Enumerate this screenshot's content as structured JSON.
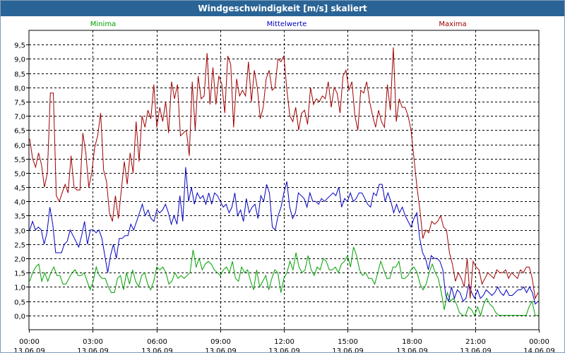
{
  "window": {
    "title": "Windgeschwindigkeit [m/s] skaliert"
  },
  "chart_data": {
    "type": "line",
    "title": "Windgeschwindigkeit [m/s] skaliert",
    "xlabel": "",
    "ylabel": "",
    "ylim": [
      -0.5,
      10
    ],
    "yticks": [
      "0,0",
      "0,5",
      "1,0",
      "1,5",
      "2,0",
      "2,5",
      "3,0",
      "3,5",
      "4,0",
      "4,5",
      "5,0",
      "5,5",
      "6,0",
      "6,5",
      "7,0",
      "7,5",
      "8,0",
      "8,5",
      "9,0",
      "9,5"
    ],
    "xticks": [
      {
        "time": "00:00",
        "date": "13.06.09"
      },
      {
        "time": "03:00",
        "date": "13.06.09"
      },
      {
        "time": "06:00",
        "date": "13.06.09"
      },
      {
        "time": "09:00",
        "date": "13.06.09"
      },
      {
        "time": "12:00",
        "date": "13.06.09"
      },
      {
        "time": "15:00",
        "date": "13.06.09"
      },
      {
        "time": "18:00",
        "date": "13.06.09"
      },
      {
        "time": "21:00",
        "date": "13.06.09"
      },
      {
        "time": "00:00",
        "date": "14.06.09"
      }
    ],
    "xlim_hours": [
      0,
      24
    ],
    "grid": true,
    "legend_placement": "top",
    "series": [
      {
        "name": "Minima",
        "color": "#00a000",
        "values": [
          1.2,
          1.5,
          1.7,
          1.8,
          1.2,
          1.5,
          1.2,
          1.5,
          1.7,
          1.4,
          1.4,
          1.1,
          1.1,
          1.3,
          1.5,
          1.6,
          1.4,
          1.4,
          1.5,
          1.2,
          0.9,
          1.2,
          1.7,
          1.4,
          1.3,
          1.3,
          1.0,
          0.8,
          0.8,
          1.3,
          1.4,
          0.9,
          1.5,
          1.1,
          1.6,
          1.2,
          1.0,
          1.4,
          1.5,
          1.1,
          0.9,
          1.2,
          1.7,
          1.6,
          1.7,
          1.5,
          1.1,
          1.2,
          1.5,
          1.3,
          1.4,
          1.3,
          1.4,
          1.5,
          2.3,
          1.7,
          2.0,
          1.6,
          1.8,
          1.9,
          1.8,
          1.6,
          1.5,
          1.4,
          1.6,
          1.7,
          1.5,
          1.9,
          1.3,
          1.2,
          1.7,
          1.5,
          1.6,
          1.2,
          0.9,
          1.6,
          1.0,
          1.2,
          1.4,
          0.9,
          1.3,
          1.6,
          1.5,
          0.8,
          1.3,
          1.5,
          1.9,
          1.6,
          2.2,
          1.7,
          1.5,
          1.6,
          2.1,
          1.6,
          1.4,
          1.7,
          1.6,
          2.0,
          1.9,
          1.6,
          1.6,
          1.7,
          1.5,
          1.8,
          1.9,
          2.1,
          1.7,
          2.4,
          2.1,
          1.6,
          1.4,
          1.5,
          1.3,
          1.3,
          1.1,
          1.5,
          1.9,
          1.6,
          1.3,
          1.3,
          1.7,
          1.7,
          1.9,
          1.3,
          1.3,
          1.4,
          1.6,
          1.7,
          1.5,
          1.1,
          0.9,
          1.1,
          1.5,
          1.8,
          1.5,
          1.3,
          0.8,
          0.2,
          0.8,
          0.5,
          0.6,
          0.4,
          0.1,
          0.0,
          0.0,
          0.3,
          0.2,
          0.0,
          0.3,
          0.0,
          0.4,
          0.6,
          0.4,
          0.3,
          0.1,
          0.0,
          0.0,
          0.0,
          0.0,
          0.0,
          0.0,
          0.0,
          0.0,
          0.0,
          0.0,
          0.3,
          0.5,
          0.0,
          0.0
        ]
      },
      {
        "name": "Mittelwerte",
        "color": "#0000c0",
        "values": [
          3.0,
          3.3,
          3.0,
          3.1,
          3.0,
          2.5,
          2.9,
          3.8,
          3.2,
          2.2,
          2.2,
          2.2,
          2.5,
          2.6,
          3.0,
          2.8,
          2.6,
          2.4,
          2.8,
          3.3,
          2.5,
          3.0,
          3.0,
          2.9,
          3.0,
          2.7,
          2.1,
          1.5,
          2.1,
          2.5,
          2.0,
          2.7,
          2.7,
          2.8,
          2.8,
          3.2,
          3.0,
          3.3,
          3.6,
          3.9,
          3.5,
          3.7,
          3.4,
          3.3,
          3.7,
          3.6,
          3.7,
          3.9,
          3.6,
          3.2,
          3.5,
          3.2,
          4.2,
          3.3,
          5.2,
          4.0,
          4.5,
          3.9,
          4.3,
          4.1,
          4.2,
          3.9,
          4.3,
          3.9,
          4.3,
          4.2,
          4.0,
          3.8,
          3.9,
          3.6,
          3.8,
          4.3,
          3.5,
          3.7,
          3.3,
          4.1,
          3.6,
          3.8,
          3.9,
          3.4,
          4.2,
          4.0,
          4.6,
          4.3,
          3.1,
          3.0,
          3.5,
          3.8,
          4.3,
          4.7,
          3.8,
          3.4,
          3.6,
          4.3,
          4.2,
          4.1,
          3.8,
          4.3,
          4.0,
          4.0,
          3.9,
          4.1,
          4.0,
          4.1,
          4.2,
          4.3,
          4.2,
          4.5,
          3.8,
          4.1,
          4.0,
          4.3,
          4.0,
          4.1,
          4.3,
          4.3,
          4.1,
          3.9,
          3.8,
          4.3,
          4.2,
          4.6,
          4.6,
          4.0,
          4.3,
          4.0,
          3.6,
          3.9,
          3.6,
          3.8,
          3.5,
          3.3,
          3.1,
          3.4,
          3.6,
          2.7,
          2.2,
          2.0,
          1.6,
          2.1,
          2.0,
          2.0,
          1.9,
          1.6,
          0.7,
          0.5,
          1.0,
          0.6,
          0.9,
          0.8,
          0.5,
          0.6,
          1.1,
          0.8,
          0.6,
          0.9,
          0.6,
          0.7,
          0.9,
          0.8,
          0.7,
          0.8,
          1.0,
          0.8,
          0.7,
          0.9,
          0.7,
          0.7,
          0.8,
          0.9,
          0.9,
          1.0,
          0.8,
          1.0,
          0.8,
          0.4,
          0.5
        ]
      },
      {
        "name": "Maxima",
        "color": "#a00000",
        "values": [
          6.2,
          5.5,
          5.2,
          5.7,
          5.3,
          4.5,
          5.0,
          7.8,
          7.8,
          4.2,
          4.0,
          4.3,
          4.6,
          4.3,
          5.6,
          4.5,
          4.4,
          4.4,
          6.4,
          5.7,
          4.5,
          5.0,
          5.9,
          6.3,
          7.1,
          5.1,
          4.7,
          3.6,
          3.3,
          4.2,
          3.4,
          4.4,
          5.4,
          4.6,
          5.7,
          5.0,
          6.8,
          5.4,
          7.0,
          6.6,
          7.2,
          6.9,
          8.1,
          6.6,
          7.3,
          6.8,
          7.5,
          6.4,
          8.2,
          7.6,
          8.1,
          6.3,
          6.4,
          6.5,
          5.6,
          8.2,
          6.5,
          8.4,
          7.6,
          7.7,
          9.2,
          7.4,
          8.7,
          7.4,
          8.4,
          8.1,
          7.1,
          9.1,
          8.8,
          6.6,
          8.3,
          7.7,
          7.9,
          7.7,
          8.9,
          7.5,
          8.6,
          8.0,
          6.9,
          7.3,
          8.3,
          8.6,
          7.9,
          8.0,
          9.0,
          8.9,
          9.1,
          7.9,
          7.0,
          6.8,
          7.3,
          6.5,
          7.1,
          7.2,
          6.7,
          8.0,
          7.4,
          7.6,
          7.5,
          7.7,
          7.6,
          8.2,
          7.3,
          8.0,
          7.8,
          7.1,
          8.4,
          8.6,
          7.9,
          8.2,
          7.0,
          6.5,
          7.9,
          7.8,
          8.2,
          7.5,
          7.0,
          6.6,
          7.2,
          6.8,
          6.6,
          8.1,
          7.2,
          9.4,
          6.8,
          7.6,
          7.3,
          7.3,
          7.0,
          6.5,
          5.5,
          4.5,
          3.7,
          2.7,
          3.0,
          2.9,
          3.3,
          3.2,
          3.3,
          3.5,
          3.1,
          3.0,
          2.2,
          1.8,
          1.2,
          1.5,
          1.3,
          1.0,
          2.0,
          0.6,
          1.9,
          1.7,
          1.6,
          1.1,
          1.3,
          1.5,
          1.4,
          1.3,
          1.6,
          1.5,
          1.5,
          1.6,
          1.3,
          1.5,
          1.4,
          1.3,
          1.6,
          1.5,
          1.7,
          1.7,
          1.3,
          0.6,
          0.8
        ]
      }
    ]
  }
}
